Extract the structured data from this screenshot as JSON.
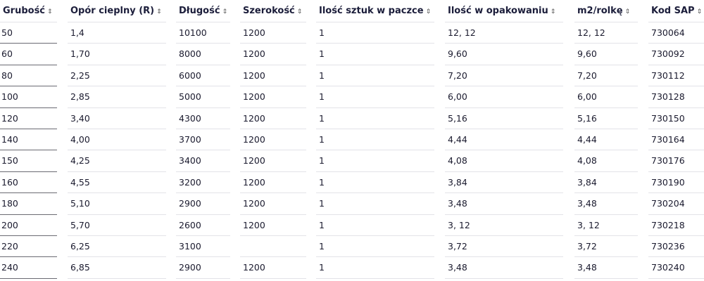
{
  "table": {
    "columns": [
      "Grubość",
      "Opór cieplny (R)",
      "Długość",
      "Szerokość",
      "Ilość sztuk w paczce",
      "Ilość w opakowaniu",
      "m2/rolkę",
      "Kod SAP"
    ],
    "sort_icon": "sort-up-down-icon",
    "rows": [
      [
        "50",
        "1,4",
        "10100",
        "1200",
        "1",
        "12, 12",
        "12, 12",
        "730064"
      ],
      [
        "60",
        "1,70",
        "8000",
        "1200",
        "1",
        "9,60",
        "9,60",
        "730092"
      ],
      [
        "80",
        "2,25",
        "6000",
        "1200",
        "1",
        "7,20",
        "7,20",
        "730112"
      ],
      [
        "100",
        "2,85",
        "5000",
        "1200",
        "1",
        "6,00",
        "6,00",
        "730128"
      ],
      [
        "120",
        "3,40",
        "4300",
        "1200",
        "1",
        "5,16",
        "5,16",
        "730150"
      ],
      [
        "140",
        "4,00",
        "3700",
        "1200",
        "1",
        "4,44",
        "4,44",
        "730164"
      ],
      [
        "150",
        "4,25",
        "3400",
        "1200",
        "1",
        "4,08",
        "4,08",
        "730176"
      ],
      [
        "160",
        "4,55",
        "3200",
        "1200",
        "1",
        "3,84",
        "3,84",
        "730190"
      ],
      [
        "180",
        "5,10",
        "2900",
        "1200",
        "1",
        "3,48",
        "3,48",
        "730204"
      ],
      [
        "200",
        "5,70",
        "2600",
        "1200",
        "1",
        "3, 12",
        "3, 12",
        "730218"
      ],
      [
        "220",
        "6,25",
        "3100",
        "",
        "1",
        "3,72",
        "3,72",
        "730236"
      ],
      [
        "240",
        "6,85",
        "2900",
        "1200",
        "1",
        "3,48",
        "3,48",
        "730240"
      ]
    ]
  }
}
